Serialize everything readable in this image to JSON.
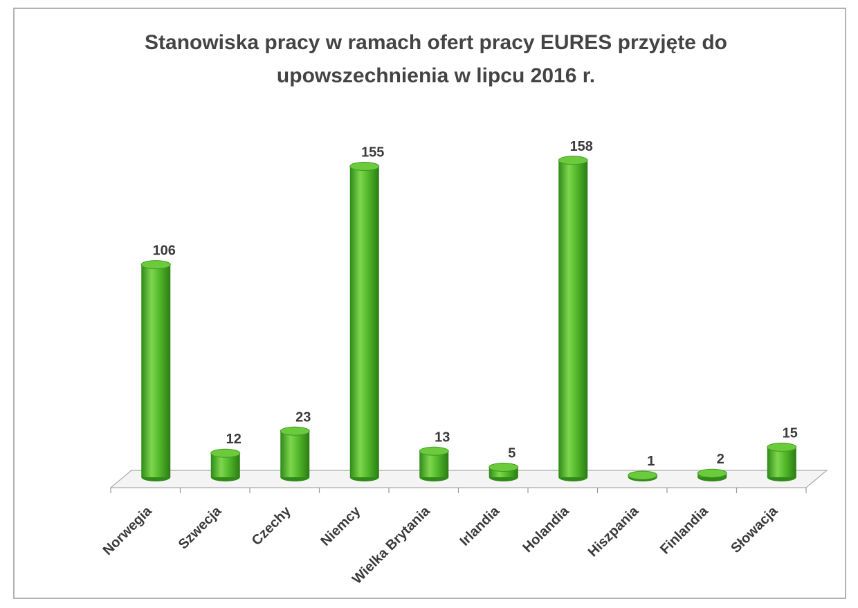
{
  "chart_data": {
    "type": "bar3d",
    "title": "Stanowiska pracy w ramach ofert pracy EURES przyjęte do upowszechnienia w lipcu 2016 r.",
    "categories": [
      "Norwegia",
      "Szwecja",
      "Czechy",
      "Niemcy",
      "Wielka Brytania",
      "Irlandia",
      "Holandia",
      "Hiszpania",
      "Finlandia",
      "Słowacja"
    ],
    "values": [
      106,
      12,
      23,
      155,
      13,
      5,
      158,
      1,
      2,
      15
    ],
    "color": "#4fb82a"
  }
}
